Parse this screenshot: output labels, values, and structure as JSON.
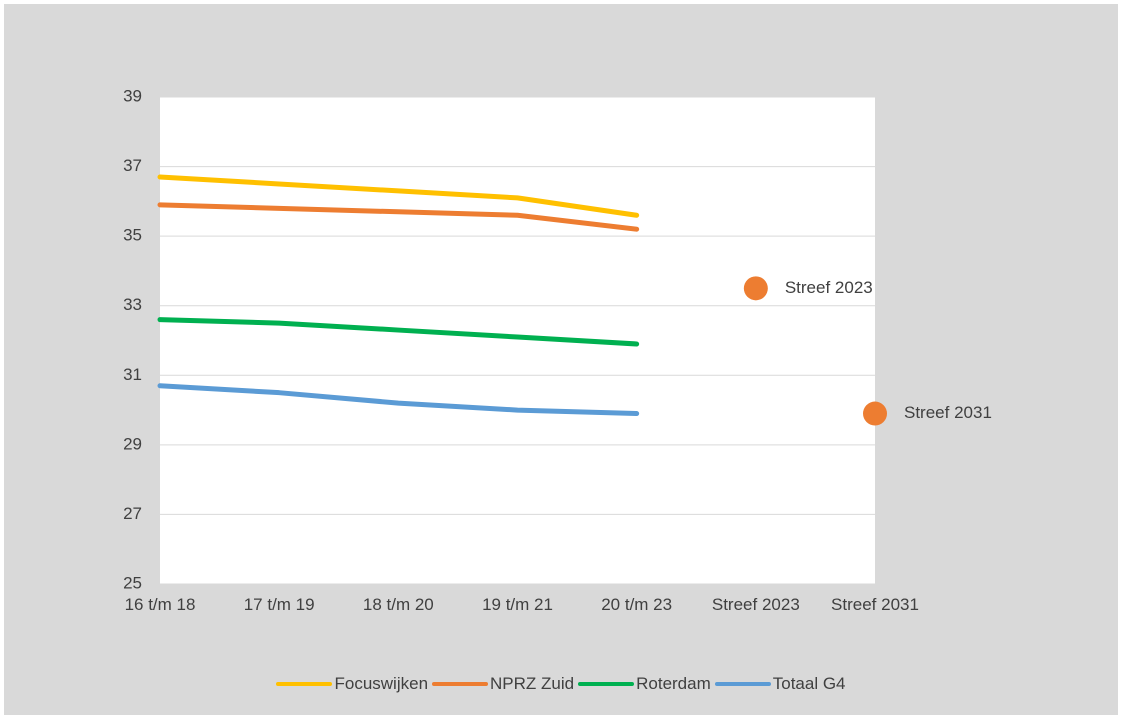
{
  "chart_data": {
    "type": "line",
    "categories": [
      "16 t/m 18",
      "17 t/m 19",
      "18 t/m 20",
      "19 t/m 21",
      "20 t/m 23",
      "Streef 2023",
      "Streef 2031"
    ],
    "series": [
      {
        "name": "Focuswijken",
        "color": "#ffc000",
        "values": [
          36.7,
          36.5,
          36.3,
          36.1,
          35.6,
          null,
          null
        ]
      },
      {
        "name": "NPRZ Zuid",
        "color": "#ed7d31",
        "values": [
          35.9,
          35.8,
          35.7,
          35.6,
          35.2,
          null,
          null
        ]
      },
      {
        "name": "Roterdam",
        "color": "#00b050",
        "values": [
          32.6,
          32.5,
          32.3,
          32.1,
          31.9,
          null,
          null
        ]
      },
      {
        "name": "Totaal G4",
        "color": "#5b9bd5",
        "values": [
          30.7,
          30.5,
          30.2,
          30.0,
          29.9,
          null,
          null
        ]
      }
    ],
    "targets": {
      "color": "#ed7d31",
      "values": [
        null,
        null,
        null,
        null,
        null,
        33.5,
        29.9
      ],
      "labels": [
        null,
        null,
        null,
        null,
        null,
        "Streef 2023",
        "Streef 2031"
      ]
    },
    "ylim": [
      25,
      39
    ],
    "yticks": [
      25,
      27,
      29,
      31,
      33,
      35,
      37,
      39
    ],
    "grid": true,
    "legend": "bottom"
  }
}
